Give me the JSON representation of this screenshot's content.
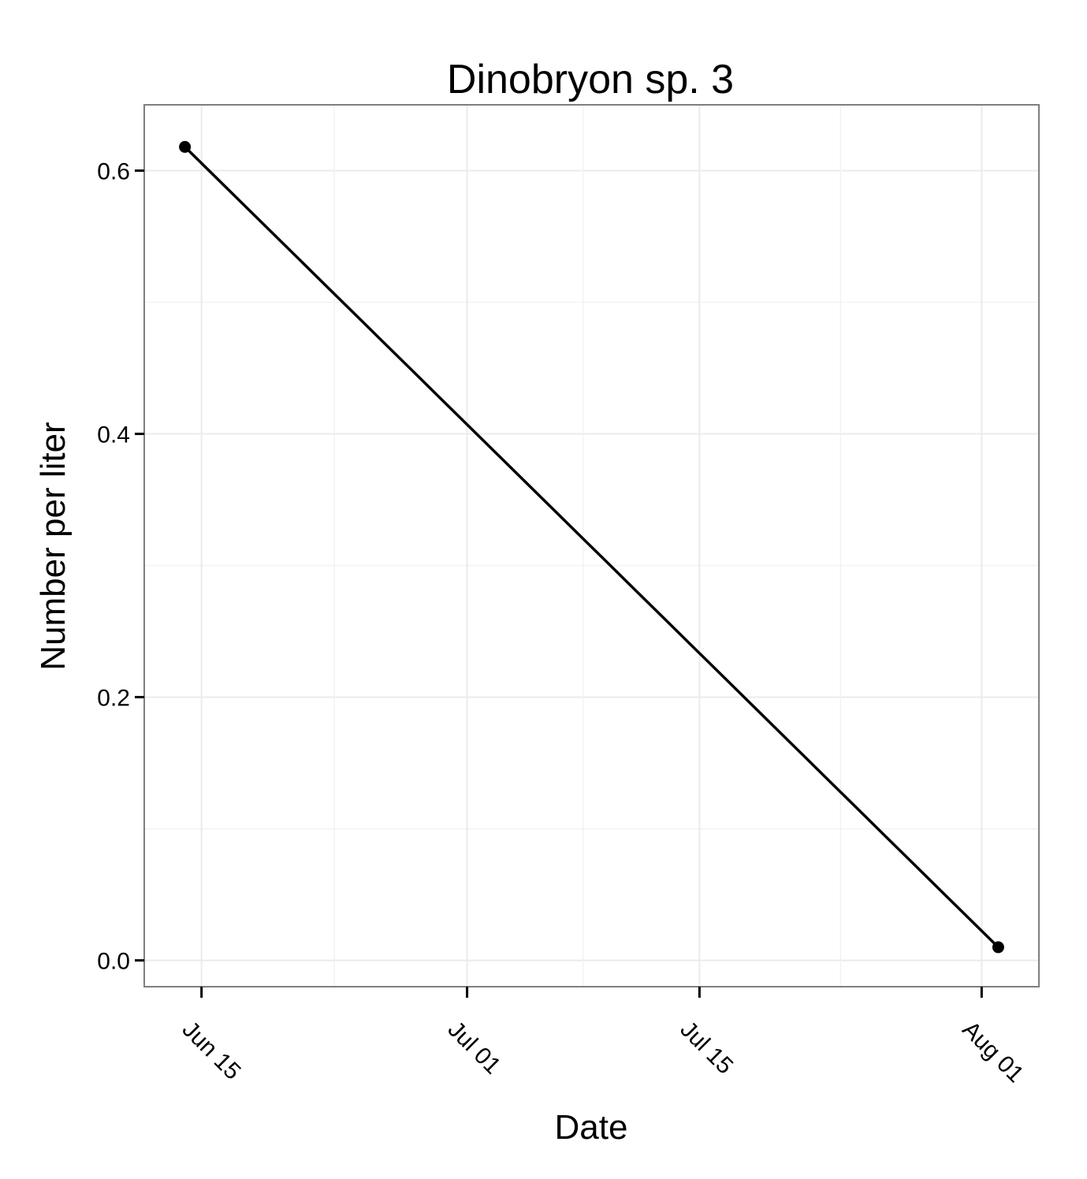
{
  "chart_data": {
    "type": "line",
    "title": "Dinobryon sp. 3",
    "xlabel": "Date",
    "ylabel": "Number per liter",
    "x_ticks": [
      "Jun 15",
      "Jul 01",
      "Jul 15",
      "Aug 01"
    ],
    "y_ticks": [
      "0.0",
      "0.2",
      "0.4",
      "0.6"
    ],
    "ylim": [
      -0.02,
      0.65
    ],
    "grid": true,
    "series": [
      {
        "x": [
          "2012-06-14",
          "2012-08-02"
        ],
        "y": [
          0.618,
          0.01
        ],
        "color": "#000000"
      }
    ]
  }
}
